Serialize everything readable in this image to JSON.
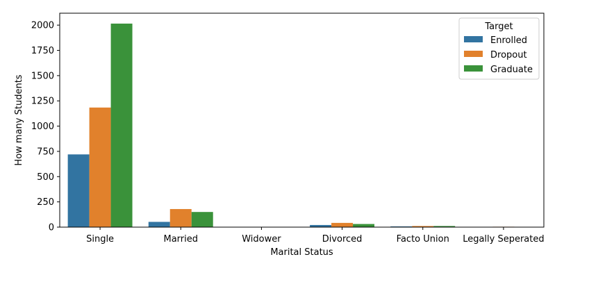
{
  "chart_data": {
    "type": "bar",
    "xlabel": "Marital Status",
    "ylabel": "How many Students",
    "categories": [
      "Single",
      "Married",
      "Widower",
      "Divorced",
      "Facto Union",
      "Legally Seperated"
    ],
    "series": [
      {
        "name": "Enrolled",
        "color": "#3274a1",
        "values": [
          720,
          52,
          2,
          21,
          7,
          1
        ]
      },
      {
        "name": "Dropout",
        "color": "#e1812c",
        "values": [
          1184,
          179,
          1,
          42,
          11,
          4
        ]
      },
      {
        "name": "Graduate",
        "color": "#3a923a",
        "values": [
          2015,
          150,
          1,
          31,
          11,
          1
        ]
      }
    ],
    "ylim": [
      0,
      2118
    ],
    "yticks": [
      0,
      250,
      500,
      750,
      1000,
      1250,
      1500,
      1750,
      2000
    ],
    "legend": {
      "title": "Target",
      "placement": "top-right"
    },
    "grid": false
  }
}
